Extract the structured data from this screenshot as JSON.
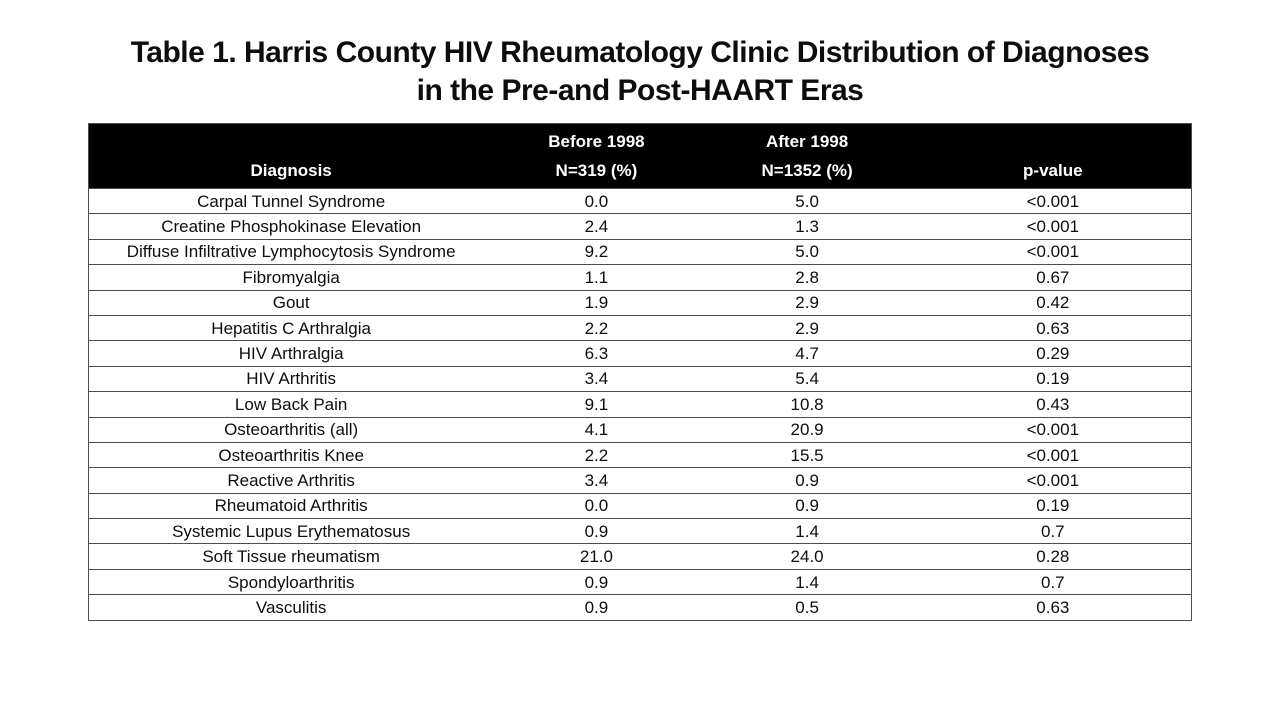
{
  "slide": {
    "title_line1": "Table 1. Harris County HIV Rheumatology Clinic Distribution of Diagnoses",
    "title_line2": "in the Pre-and Post-HAART Eras"
  },
  "table": {
    "header": [
      {
        "top": "",
        "bottom": "Diagnosis"
      },
      {
        "top": "Before 1998",
        "bottom": "N=319 (%)"
      },
      {
        "top": "After 1998",
        "bottom": "N=1352 (%)"
      },
      {
        "top": "",
        "bottom": "p-value"
      }
    ],
    "rows": [
      {
        "diagnosis": "Carpal Tunnel Syndrome",
        "before": "0.0",
        "after": "5.0",
        "p": "<0.001"
      },
      {
        "diagnosis": "Creatine Phosphokinase Elevation",
        "before": "2.4",
        "after": "1.3",
        "p": "<0.001"
      },
      {
        "diagnosis": "Diffuse Infiltrative Lymphocytosis Syndrome",
        "before": "9.2",
        "after": "5.0",
        "p": "<0.001"
      },
      {
        "diagnosis": "Fibromyalgia",
        "before": "1.1",
        "after": "2.8",
        "p": "0.67"
      },
      {
        "diagnosis": "Gout",
        "before": "1.9",
        "after": "2.9",
        "p": "0.42"
      },
      {
        "diagnosis": "Hepatitis C Arthralgia",
        "before": "2.2",
        "after": "2.9",
        "p": "0.63"
      },
      {
        "diagnosis": "HIV Arthralgia",
        "before": "6.3",
        "after": "4.7",
        "p": "0.29"
      },
      {
        "diagnosis": "HIV Arthritis",
        "before": "3.4",
        "after": "5.4",
        "p": "0.19"
      },
      {
        "diagnosis": "Low Back Pain",
        "before": "9.1",
        "after": "10.8",
        "p": "0.43"
      },
      {
        "diagnosis": "Osteoarthritis (all)",
        "before": "4.1",
        "after": "20.9",
        "p": "<0.001"
      },
      {
        "diagnosis": "Osteoarthritis Knee",
        "before": "2.2",
        "after": "15.5",
        "p": "<0.001"
      },
      {
        "diagnosis": "Reactive Arthritis",
        "before": "3.4",
        "after": "0.9",
        "p": "<0.001"
      },
      {
        "diagnosis": "Rheumatoid Arthritis",
        "before": "0.0",
        "after": "0.9",
        "p": "0.19"
      },
      {
        "diagnosis": "Systemic Lupus Erythematosus",
        "before": "0.9",
        "after": "1.4",
        "p": "0.7"
      },
      {
        "diagnosis": "Soft Tissue rheumatism",
        "before": "21.0",
        "after": "24.0",
        "p": "0.28"
      },
      {
        "diagnosis": "Spondyloarthritis",
        "before": "0.9",
        "after": "1.4",
        "p": "0.7"
      },
      {
        "diagnosis": "Vasculitis",
        "before": "0.9",
        "after": "0.5",
        "p": "0.63"
      }
    ]
  },
  "chart_data": {
    "type": "table",
    "title": "Table 1. Harris County HIV Rheumatology Clinic Distribution of Diagnoses in the Pre-and Post-HAART Eras",
    "columns": [
      "Diagnosis",
      "Before 1998 N=319 (%)",
      "After 1998 N=1352 (%)",
      "p-value"
    ],
    "rows": [
      [
        "Carpal Tunnel Syndrome",
        "0.0",
        "5.0",
        "<0.001"
      ],
      [
        "Creatine Phosphokinase Elevation",
        "2.4",
        "1.3",
        "<0.001"
      ],
      [
        "Diffuse Infiltrative Lymphocytosis Syndrome",
        "9.2",
        "5.0",
        "<0.001"
      ],
      [
        "Fibromyalgia",
        "1.1",
        "2.8",
        "0.67"
      ],
      [
        "Gout",
        "1.9",
        "2.9",
        "0.42"
      ],
      [
        "Hepatitis C Arthralgia",
        "2.2",
        "2.9",
        "0.63"
      ],
      [
        "HIV Arthralgia",
        "6.3",
        "4.7",
        "0.29"
      ],
      [
        "HIV Arthritis",
        "3.4",
        "5.4",
        "0.19"
      ],
      [
        "Low Back Pain",
        "9.1",
        "10.8",
        "0.43"
      ],
      [
        "Osteoarthritis (all)",
        "4.1",
        "20.9",
        "<0.001"
      ],
      [
        "Osteoarthritis Knee",
        "2.2",
        "15.5",
        "<0.001"
      ],
      [
        "Reactive Arthritis",
        "3.4",
        "0.9",
        "<0.001"
      ],
      [
        "Rheumatoid Arthritis",
        "0.0",
        "0.9",
        "0.19"
      ],
      [
        "Systemic Lupus Erythematosus",
        "0.9",
        "1.4",
        "0.7"
      ],
      [
        "Soft Tissue rheumatism",
        "21.0",
        "24.0",
        "0.28"
      ],
      [
        "Spondyloarthritis",
        "0.9",
        "1.4",
        "0.7"
      ],
      [
        "Vasculitis",
        "0.9",
        "0.5",
        "0.63"
      ]
    ]
  },
  "colors": {
    "background": "#ffffff",
    "header_bg": "#000000",
    "header_text": "#ffffff",
    "body_text": "#0d0d0d",
    "border": "#4d4d4d"
  }
}
